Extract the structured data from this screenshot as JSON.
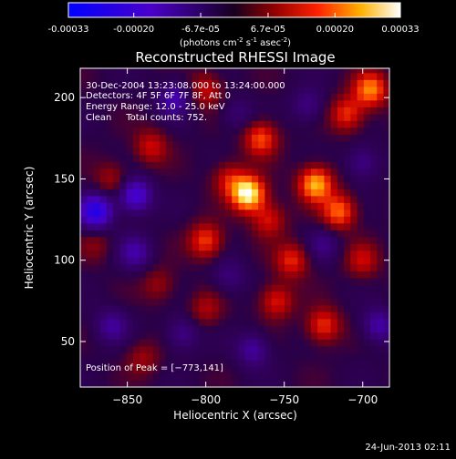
{
  "colorbar": {
    "tick_labels": [
      "-0.00033",
      "-0.00020",
      "-6.7e-05",
      "6.7e-05",
      "0.00020",
      "0.00033"
    ],
    "range": [
      -0.00033,
      0.00033
    ],
    "unit_text": "(photons cm",
    "unit_exp1": "-2",
    "unit_mid": " s",
    "unit_exp2": "-1",
    "unit_tail": " asec",
    "unit_exp3": "-2",
    "unit_close": ")"
  },
  "chart_data": {
    "type": "heatmap",
    "title": "Reconstructed RHESSI Image",
    "xlabel": "Heliocentric X (arcsec)",
    "ylabel": "Heliocentric Y (arcsec)",
    "xlim": [
      -880,
      -683
    ],
    "ylim": [
      22,
      218
    ],
    "x_ticks": [
      -850,
      -800,
      -750,
      -700
    ],
    "y_ticks": [
      50,
      100,
      150,
      200
    ],
    "x_tick_labels": [
      "−850",
      "−800",
      "−750",
      "−700"
    ],
    "y_tick_labels": [
      "50",
      "100",
      "150",
      "200"
    ],
    "peak": [
      -773,
      141
    ],
    "bright_sources": [
      {
        "x": -773,
        "y": 141,
        "value": 0.00033
      },
      {
        "x": -730,
        "y": 147,
        "value": 0.00026
      },
      {
        "x": -715,
        "y": 130,
        "value": 0.0002
      },
      {
        "x": -765,
        "y": 175,
        "value": 0.00018
      },
      {
        "x": -695,
        "y": 205,
        "value": 0.00022
      },
      {
        "x": -710,
        "y": 190,
        "value": 0.00016
      },
      {
        "x": -800,
        "y": 112,
        "value": 0.00017
      },
      {
        "x": -835,
        "y": 170,
        "value": 0.00012
      },
      {
        "x": -860,
        "y": 150,
        "value": 9e-05
      },
      {
        "x": -745,
        "y": 100,
        "value": 0.00015
      },
      {
        "x": -755,
        "y": 75,
        "value": 0.00014
      },
      {
        "x": -725,
        "y": 60,
        "value": 0.00016
      },
      {
        "x": -800,
        "y": 70,
        "value": 9e-05
      },
      {
        "x": -830,
        "y": 85,
        "value": 8e-05
      },
      {
        "x": -840,
        "y": 40,
        "value": 8e-05
      },
      {
        "x": -700,
        "y": 100,
        "value": 0.00011
      },
      {
        "x": -800,
        "y": 205,
        "value": 0.00012
      },
      {
        "x": -760,
        "y": 125,
        "value": 0.00013
      },
      {
        "x": -785,
        "y": 150,
        "value": 0.00012
      },
      {
        "x": -870,
        "y": 110,
        "value": 6e-05
      }
    ],
    "negative_sources": [
      {
        "x": -870,
        "y": 130,
        "value": -0.00025
      },
      {
        "x": -845,
        "y": 140,
        "value": -0.0002
      },
      {
        "x": -820,
        "y": 200,
        "value": -0.00014
      },
      {
        "x": -845,
        "y": 105,
        "value": -0.00012
      },
      {
        "x": -815,
        "y": 55,
        "value": -0.0001
      },
      {
        "x": -770,
        "y": 45,
        "value": -0.00012
      },
      {
        "x": -690,
        "y": 60,
        "value": -0.00013
      },
      {
        "x": -700,
        "y": 160,
        "value": -0.0001
      },
      {
        "x": -735,
        "y": 195,
        "value": -9e-05
      },
      {
        "x": -785,
        "y": 90,
        "value": -8e-05
      },
      {
        "x": -860,
        "y": 60,
        "value": -0.00011
      },
      {
        "x": -725,
        "y": 110,
        "value": -8e-05
      },
      {
        "x": -780,
        "y": 190,
        "value": -7e-05
      }
    ]
  },
  "annotations": {
    "time_range": "30-Dec-2004 13:23:08.000 to 13:24:00.000",
    "detectors": "Detectors: 4F 5F 6F 7F 8F, Att 0",
    "energy": "Energy Range: 12.0 - 25.0 keV",
    "clean": "Clean     Total counts: 752.",
    "peak_label": "Position of Peak = [−773,141]"
  },
  "footer": {
    "date": "24-Jun-2013 02:11"
  }
}
